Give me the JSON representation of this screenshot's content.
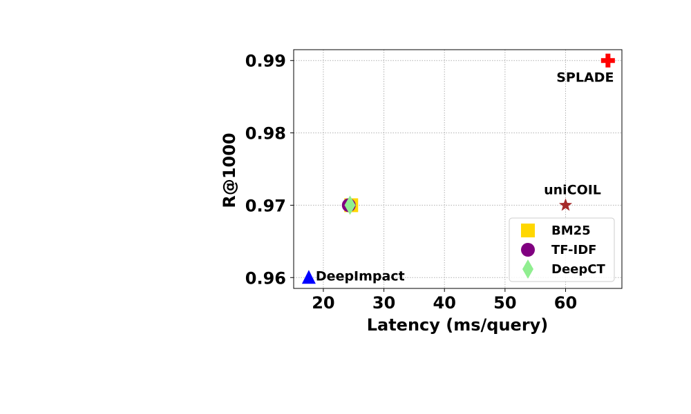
{
  "chart_data": {
    "type": "scatter",
    "xlabel": "Latency (ms/query)",
    "ylabel": "R@1000",
    "xlim": [
      15.1,
      69.3
    ],
    "ylim": [
      0.9585,
      0.9915
    ],
    "xticks": [
      20,
      30,
      40,
      50,
      60
    ],
    "yticks": [
      0.96,
      0.97,
      0.98,
      0.99
    ],
    "xtick_labels": [
      "20",
      "30",
      "40",
      "50",
      "60"
    ],
    "ytick_labels": [
      "0.96",
      "0.97",
      "0.98",
      "0.99"
    ],
    "grid": true,
    "legend": "lower-right",
    "points": [
      {
        "name": "BM25",
        "x": 24.6,
        "y": 0.97,
        "marker": "square",
        "color": "#FFD700",
        "legend": true,
        "label": ""
      },
      {
        "name": "TF-IDF",
        "x": 24.2,
        "y": 0.97,
        "marker": "circle",
        "color": "#800080",
        "legend": true,
        "label": ""
      },
      {
        "name": "DeepCT",
        "x": 24.4,
        "y": 0.97,
        "marker": "diamond",
        "color": "#90EE90",
        "legend": true,
        "label": ""
      },
      {
        "name": "DeepImpact",
        "x": 17.6,
        "y": 0.96,
        "marker": "triangle",
        "color": "#0000FF",
        "legend": false,
        "label": "DeepImpact"
      },
      {
        "name": "uniCOIL",
        "x": 60.0,
        "y": 0.97,
        "marker": "star",
        "color": "#A52A2A",
        "legend": false,
        "label": "uniCOIL"
      },
      {
        "name": "SPLADE",
        "x": 67.0,
        "y": 0.99,
        "marker": "plus",
        "color": "#FF0000",
        "legend": false,
        "label": "SPLADE"
      }
    ],
    "legend_entries": [
      {
        "label": "BM25",
        "marker": "square",
        "color": "#FFD700"
      },
      {
        "label": "TF-IDF",
        "marker": "circle",
        "color": "#800080"
      },
      {
        "label": "DeepCT",
        "marker": "diamond",
        "color": "#90EE90"
      }
    ]
  }
}
